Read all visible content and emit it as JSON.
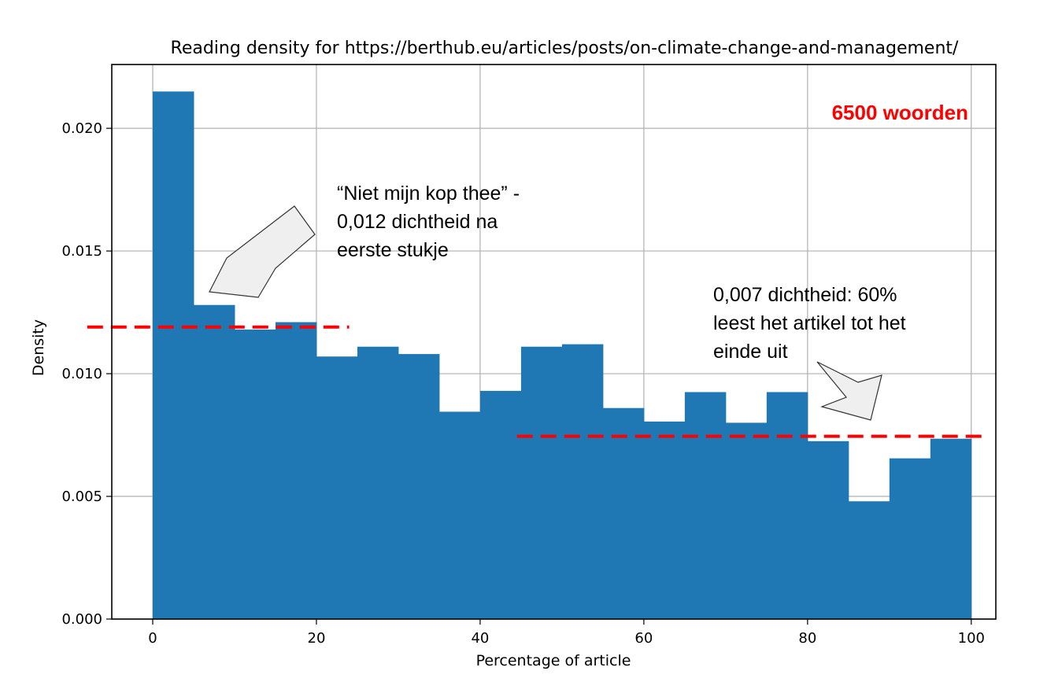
{
  "chart_data": {
    "type": "bar",
    "title": "Reading density for https://berthub.eu/articles/posts/on-climate-change-and-management/",
    "xlabel": "Percentage of article",
    "ylabel": "Density",
    "xlim": [
      -5,
      103
    ],
    "ylim": [
      0,
      0.0226
    ],
    "grid": true,
    "bin_width": 5,
    "bins": [
      0,
      5,
      10,
      15,
      20,
      25,
      30,
      35,
      40,
      45,
      50,
      55,
      60,
      65,
      70,
      75,
      80,
      85,
      90,
      95
    ],
    "values": [
      0.0215,
      0.0128,
      0.0118,
      0.0121,
      0.0107,
      0.0111,
      0.0108,
      0.00845,
      0.0093,
      0.0111,
      0.0112,
      0.0086,
      0.00805,
      0.00925,
      0.008,
      0.00925,
      0.00725,
      0.0048,
      0.00655,
      0.00735
    ],
    "xticks": [
      "0",
      "20",
      "40",
      "60",
      "80",
      "100"
    ],
    "xtick_values": [
      0,
      20,
      40,
      60,
      80,
      100
    ],
    "yticks": [
      "0.000",
      "0.005",
      "0.010",
      "0.015",
      "0.020"
    ],
    "ytick_values": [
      0,
      0.005,
      0.01,
      0.015,
      0.02
    ],
    "bar_color": "#1f77b4",
    "reference_lines": [
      {
        "x": [
          -8,
          24
        ],
        "y": 0.0119,
        "color": "#ff0000",
        "style": "dashed"
      },
      {
        "x": [
          44.5,
          102
        ],
        "y": 0.00745,
        "color": "#ff0000",
        "style": "dashed"
      }
    ],
    "annotations": {
      "word_count": {
        "text": "6500 woorden",
        "color": "#ff0000"
      },
      "note_left": {
        "lines": [
          "“Niet mijn kop thee” -",
          "0,012 dichtheid na",
          "eerste stukje"
        ]
      },
      "note_right": {
        "lines": [
          "0,007 dichtheid: 60%",
          "leest het artikel tot het",
          "einde uit"
        ]
      }
    }
  }
}
